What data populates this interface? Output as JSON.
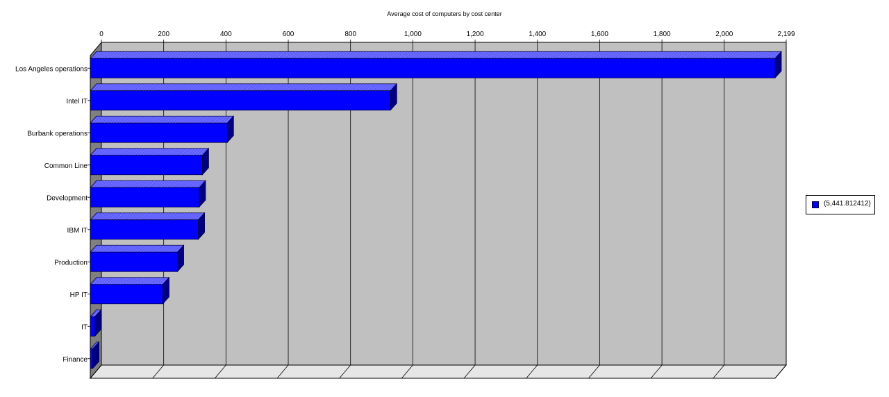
{
  "chart_data": {
    "type": "bar",
    "orientation": "horizontal",
    "title": "Average cost of computers by cost center",
    "categories": [
      "Los Angeles operations",
      "Intel IT",
      "Burbank operations",
      "Common Line",
      "Development",
      "IBM IT",
      "Production",
      "HP IT",
      "IT",
      "Finance"
    ],
    "series": [
      {
        "name": "(5,441.812412)",
        "values": [
          2199,
          964,
          440,
          360,
          350,
          347,
          280,
          233,
          15,
          8
        ]
      }
    ],
    "xlim": [
      0,
      2199
    ],
    "x_ticks": [
      0,
      200,
      400,
      600,
      800,
      1000,
      1200,
      1400,
      1600,
      1800,
      2000,
      2199
    ],
    "x_tick_labels": [
      "0",
      "200",
      "400",
      "600",
      "800",
      "1,000",
      "1,200",
      "1,400",
      "1,600",
      "1,800",
      "2,000",
      "2,199"
    ],
    "grid": true,
    "legend_position": "right",
    "colors": {
      "bar": "#0000ff",
      "bar_top": "#5a5aff",
      "bar_side": "#000080",
      "plot_bg": "#c0c0c0",
      "wall": "#808080"
    }
  }
}
